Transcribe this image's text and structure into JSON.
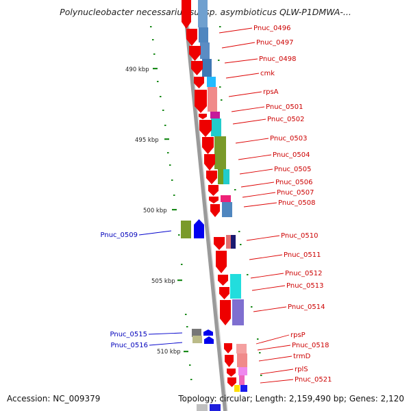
{
  "title": "Polynucleobacter necessarius subsp. asymbioticus QLW-P1DMWA-...",
  "footer": {
    "accession": "Accession: NC_009379",
    "summary": "Topology: circular; Length: 2,159,490 bp; Genes: 2,120"
  },
  "colors": {
    "forward_strand": "#0000ee",
    "reverse_strand": "#ee0000",
    "axis": "#808080",
    "tick": "#1a8a1a"
  },
  "kbp_ticks": [
    "490 kbp",
    "495 kbp",
    "500 kbp",
    "505 kbp",
    "510 kbp"
  ],
  "right_labels": [
    "Pnuc_0496",
    "Pnuc_0497",
    "Pnuc_0498",
    "cmk",
    "rpsA",
    "Pnuc_0501",
    "Pnuc_0502",
    "Pnuc_0503",
    "Pnuc_0504",
    "Pnuc_0505",
    "Pnuc_0506",
    "Pnuc_0507",
    "Pnuc_0508",
    "Pnuc_0510",
    "Pnuc_0511",
    "Pnuc_0512",
    "Pnuc_0513",
    "Pnuc_0514",
    "rpsP",
    "Pnuc_0518",
    "trmD",
    "rplS",
    "Pnuc_0521"
  ],
  "left_labels": [
    "Pnuc_0509",
    "Pnuc_0515",
    "Pnuc_0516"
  ]
}
